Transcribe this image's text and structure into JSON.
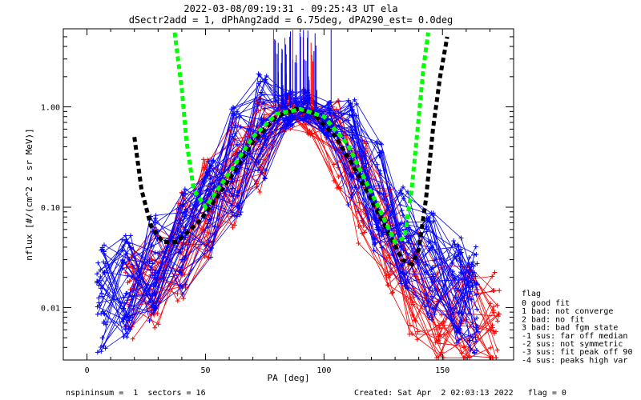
{
  "chart_data": {
    "type": "line",
    "title": "2022-03-08/09:19:31 - 09:25:43 UT ela",
    "subtitle": "dSectr2add = 1, dPhAng2add = 6.75deg, dPA290_est=    0.0deg",
    "xlabel": "PA [deg]",
    "ylabel": "nflux [#/(cm^2 s sr MeV)]",
    "xlim": [
      -10,
      180
    ],
    "ylim": [
      0.003,
      6.0
    ],
    "yscale": "log",
    "x_ticks": [
      0,
      50,
      100,
      150
    ],
    "x_tick_labels": [
      "0",
      "50",
      "100",
      "150"
    ],
    "y_ticks": [
      0.01,
      0.1,
      1.0
    ],
    "y_tick_labels": [
      "0.01",
      "0.10",
      "1.00"
    ],
    "grid": false,
    "legend_placement": "right",
    "colors": {
      "blue": "#0000ff",
      "red": "#ff0000",
      "green": "#00ff00",
      "black": "#000000"
    },
    "series": [
      {
        "color": "#0000ff",
        "style": "thin-lines-plus-markers",
        "x": [
          6,
          17,
          28,
          40,
          52,
          63,
          74,
          85,
          92,
          101,
          112,
          123,
          134,
          145,
          156,
          163
        ],
        "y": [
          0.012,
          0.018,
          0.025,
          0.045,
          0.11,
          0.28,
          0.62,
          0.95,
          1.0,
          0.75,
          0.36,
          0.13,
          0.05,
          0.025,
          0.015,
          0.012
        ]
      },
      {
        "color": "#ff0000",
        "style": "thin-lines-plus-markers",
        "x": [
          18,
          29,
          40,
          51,
          62,
          73,
          84,
          94,
          105,
          116,
          127,
          138,
          149,
          160,
          172
        ],
        "y": [
          0.012,
          0.02,
          0.04,
          0.09,
          0.22,
          0.5,
          0.85,
          0.78,
          0.42,
          0.15,
          0.045,
          0.016,
          0.009,
          0.008,
          0.007
        ]
      },
      {
        "color": "#00ff00",
        "style": "thick-dashed",
        "x": [
          37,
          40,
          42,
          45,
          50,
          60,
          70,
          80,
          90,
          100,
          110,
          120,
          130,
          134,
          137,
          140,
          142,
          144
        ],
        "y": [
          5.5,
          1.5,
          0.45,
          0.15,
          0.1,
          0.22,
          0.5,
          0.85,
          0.95,
          0.8,
          0.42,
          0.14,
          0.045,
          0.05,
          0.15,
          0.8,
          2.5,
          5.5
        ]
      },
      {
        "color": "#000000",
        "style": "thick-dashed",
        "x": [
          20,
          23,
          27,
          32,
          38,
          48,
          60,
          70,
          80,
          88,
          95,
          105,
          115,
          125,
          133,
          137,
          140,
          143,
          146,
          149,
          152
        ],
        "y": [
          0.5,
          0.15,
          0.065,
          0.045,
          0.045,
          0.075,
          0.19,
          0.45,
          0.8,
          0.95,
          0.88,
          0.5,
          0.2,
          0.07,
          0.03,
          0.027,
          0.038,
          0.12,
          0.6,
          2.0,
          5.0
        ]
      }
    ],
    "legend": {
      "title": "flag",
      "entries": [
        " 0 good fit",
        " 1 bad: not converge",
        " 2 bad: no fit",
        " 3 bad: bad fgm state",
        "-1 sus: far off median",
        "-2 sus: not symmetric",
        "-3 sus: fit peak off 90",
        "-4 sus: peaks high var"
      ]
    },
    "footer": {
      "left": "nspininsum =  1  sectors = 16",
      "right": "Created: Sat Apr  2 02:03:13 2022   flag = 0"
    }
  }
}
